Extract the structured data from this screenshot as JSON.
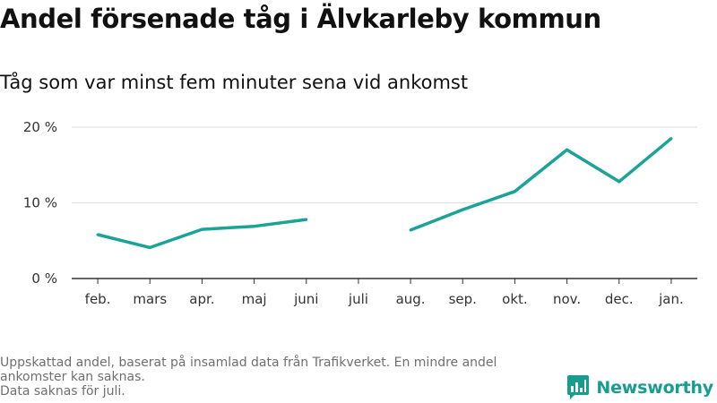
{
  "title": "Andel försenade tåg i Älvkarleby kommun",
  "subtitle": "Tåg som var minst fem minuter sena vid ankomst",
  "footnote": {
    "line1": "Uppskattad andel, baserat på insamlad data från Trafikverket. En mindre andel",
    "line2": "ankomster kan saknas.",
    "line3": "Data saknas för juli."
  },
  "brand": {
    "name": "Newsworthy",
    "logo_icon": "bar-chart-speech-bubble-icon",
    "color": "#179d8f"
  },
  "chart_data": {
    "type": "line",
    "categories": [
      "feb.",
      "mars",
      "apr.",
      "maj",
      "juni",
      "juli",
      "aug.",
      "sep.",
      "okt.",
      "nov.",
      "dec.",
      "jan."
    ],
    "series": [
      {
        "values": [
          5.8,
          4.1,
          6.5,
          6.9,
          7.8,
          null,
          6.4,
          9.1,
          11.5,
          17.0,
          12.8,
          18.5
        ],
        "color": "#1aa396"
      }
    ],
    "y_ticks": [
      0,
      10,
      20
    ],
    "y_tick_labels": [
      "0 %",
      "10 %",
      "20 %"
    ],
    "ylim": [
      0,
      20
    ],
    "grid": true,
    "xlabel": "",
    "ylabel": ""
  }
}
